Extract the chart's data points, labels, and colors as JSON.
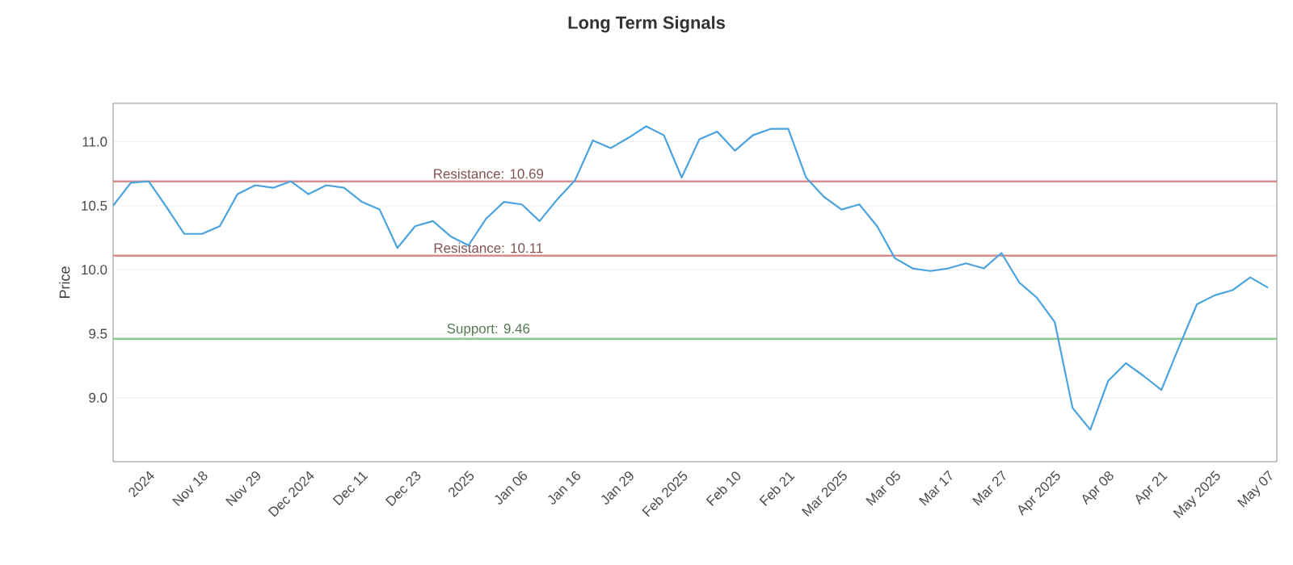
{
  "chart_data": {
    "type": "line",
    "title": "Long Term Signals",
    "ylabel": "Price",
    "categories": [
      null,
      null,
      "2024",
      null,
      null,
      "Nov 18",
      null,
      null,
      "Nov 29",
      null,
      null,
      "Dec 2024",
      null,
      null,
      "Dec 11",
      null,
      null,
      "Dec 23",
      null,
      null,
      "2025",
      null,
      null,
      "Jan 06",
      null,
      null,
      "Jan 16",
      null,
      null,
      "Jan 29",
      null,
      null,
      "Feb 2025",
      null,
      null,
      "Feb 10",
      null,
      null,
      "Feb 21",
      null,
      null,
      "Mar 2025",
      null,
      null,
      "Mar 05",
      null,
      null,
      "Mar 17",
      null,
      null,
      "Mar 27",
      null,
      null,
      "Apr 2025",
      null,
      null,
      "Apr 08",
      null,
      null,
      "Apr 21",
      null,
      null,
      "May 2025",
      null,
      null,
      "May 07"
    ],
    "series": [
      {
        "color": "#4aa3df",
        "values": [
          10.5,
          10.68,
          10.69,
          10.49,
          10.28,
          10.28,
          10.34,
          10.59,
          10.66,
          10.64,
          10.69,
          10.59,
          10.66,
          10.64,
          10.53,
          10.47,
          10.17,
          10.34,
          10.38,
          10.26,
          10.19,
          10.4,
          10.53,
          10.51,
          10.38,
          10.55,
          10.7,
          11.01,
          10.95,
          11.03,
          11.12,
          11.05,
          10.72,
          11.02,
          11.08,
          10.93,
          11.05,
          11.1,
          11.1,
          10.72,
          10.57,
          10.47,
          10.51,
          10.34,
          10.09,
          10.01,
          9.99,
          10.01,
          10.05,
          10.01,
          10.13,
          9.9,
          9.78,
          9.59,
          8.92,
          8.75,
          9.13,
          9.27,
          9.17,
          9.06,
          9.4,
          9.73,
          9.8,
          9.84,
          9.94,
          9.86
        ]
      }
    ],
    "ylim": [
      8.5,
      11.3
    ],
    "yticks": [
      {
        "value": 9,
        "label": "9.0"
      },
      {
        "value": 9.5,
        "label": "9.5"
      },
      {
        "value": 10,
        "label": "10.0"
      },
      {
        "value": 10.5,
        "label": "10.5"
      },
      {
        "value": 11,
        "label": "11.0"
      }
    ],
    "grid": "y",
    "marker": "none",
    "line_style": "solid",
    "ref_lines": [
      {
        "axis": "y",
        "value": 10.69,
        "label": "Resistance: 10.69",
        "color": "#d98c8c"
      },
      {
        "axis": "y",
        "value": 10.11,
        "label": "Resistance: 10.11",
        "color": "#d98c8c"
      },
      {
        "axis": "y",
        "value": 9.46,
        "label": "Support: 9.46",
        "color": "#8cc98c"
      }
    ]
  }
}
